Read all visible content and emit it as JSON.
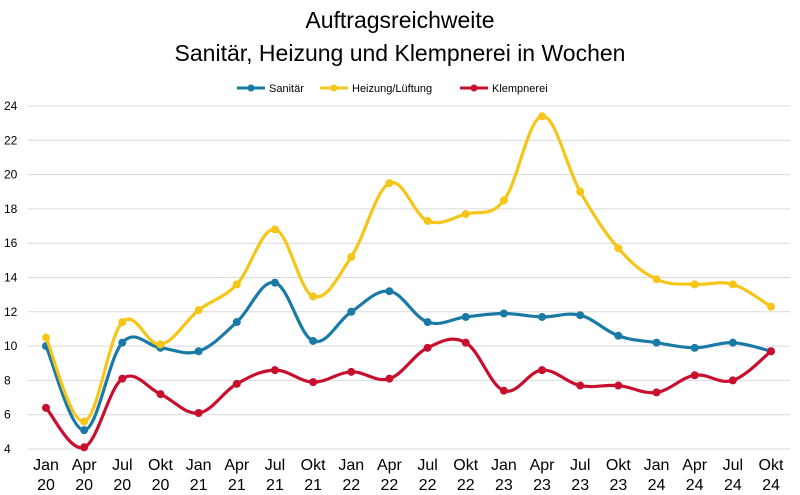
{
  "chart_data": {
    "type": "line",
    "title": [
      "Auftragsreichweite",
      "Sanitär, Heizung und Klempnerei in Wochen"
    ],
    "xlabel": "",
    "ylabel": "",
    "ylim": [
      4,
      24
    ],
    "yticks": [
      4,
      6,
      8,
      10,
      12,
      14,
      16,
      18,
      20,
      22,
      24
    ],
    "grid": true,
    "legend_position": "top",
    "categories": [
      [
        "Jan",
        "20"
      ],
      [
        "Apr",
        "20"
      ],
      [
        "Jul",
        "20"
      ],
      [
        "Okt",
        "20"
      ],
      [
        "Jan",
        "21"
      ],
      [
        "Apr",
        "21"
      ],
      [
        "Jul",
        "21"
      ],
      [
        "Okt",
        "21"
      ],
      [
        "Jan",
        "22"
      ],
      [
        "Apr",
        "22"
      ],
      [
        "Jul",
        "22"
      ],
      [
        "Okt",
        "22"
      ],
      [
        "Jan",
        "23"
      ],
      [
        "Apr",
        "23"
      ],
      [
        "Jul",
        "23"
      ],
      [
        "Okt",
        "23"
      ],
      [
        "Jan",
        "24"
      ],
      [
        "Apr",
        "24"
      ],
      [
        "Jul",
        "24"
      ],
      [
        "Okt",
        "24"
      ]
    ],
    "series": [
      {
        "name": "Sanitär",
        "color": "#1a7aa6",
        "values": [
          10.0,
          5.1,
          10.2,
          9.9,
          9.7,
          11.4,
          13.7,
          10.3,
          12.0,
          13.2,
          11.4,
          11.7,
          11.9,
          11.7,
          11.8,
          10.6,
          10.2,
          9.9,
          10.2,
          9.7
        ]
      },
      {
        "name": "Heizung/Lüftung",
        "color": "#f5c518",
        "values": [
          10.5,
          5.6,
          11.4,
          10.1,
          12.1,
          13.6,
          16.8,
          12.9,
          15.2,
          19.5,
          17.3,
          17.7,
          18.5,
          23.4,
          19.0,
          15.7,
          13.9,
          13.6,
          13.6,
          12.3
        ]
      },
      {
        "name": "Klempnerei",
        "color": "#c8102e",
        "values": [
          6.4,
          4.1,
          8.1,
          7.2,
          6.1,
          7.8,
          8.6,
          7.9,
          8.5,
          8.1,
          9.9,
          10.2,
          7.4,
          8.6,
          7.7,
          7.7,
          7.3,
          8.3,
          8.0,
          9.7
        ]
      }
    ]
  }
}
